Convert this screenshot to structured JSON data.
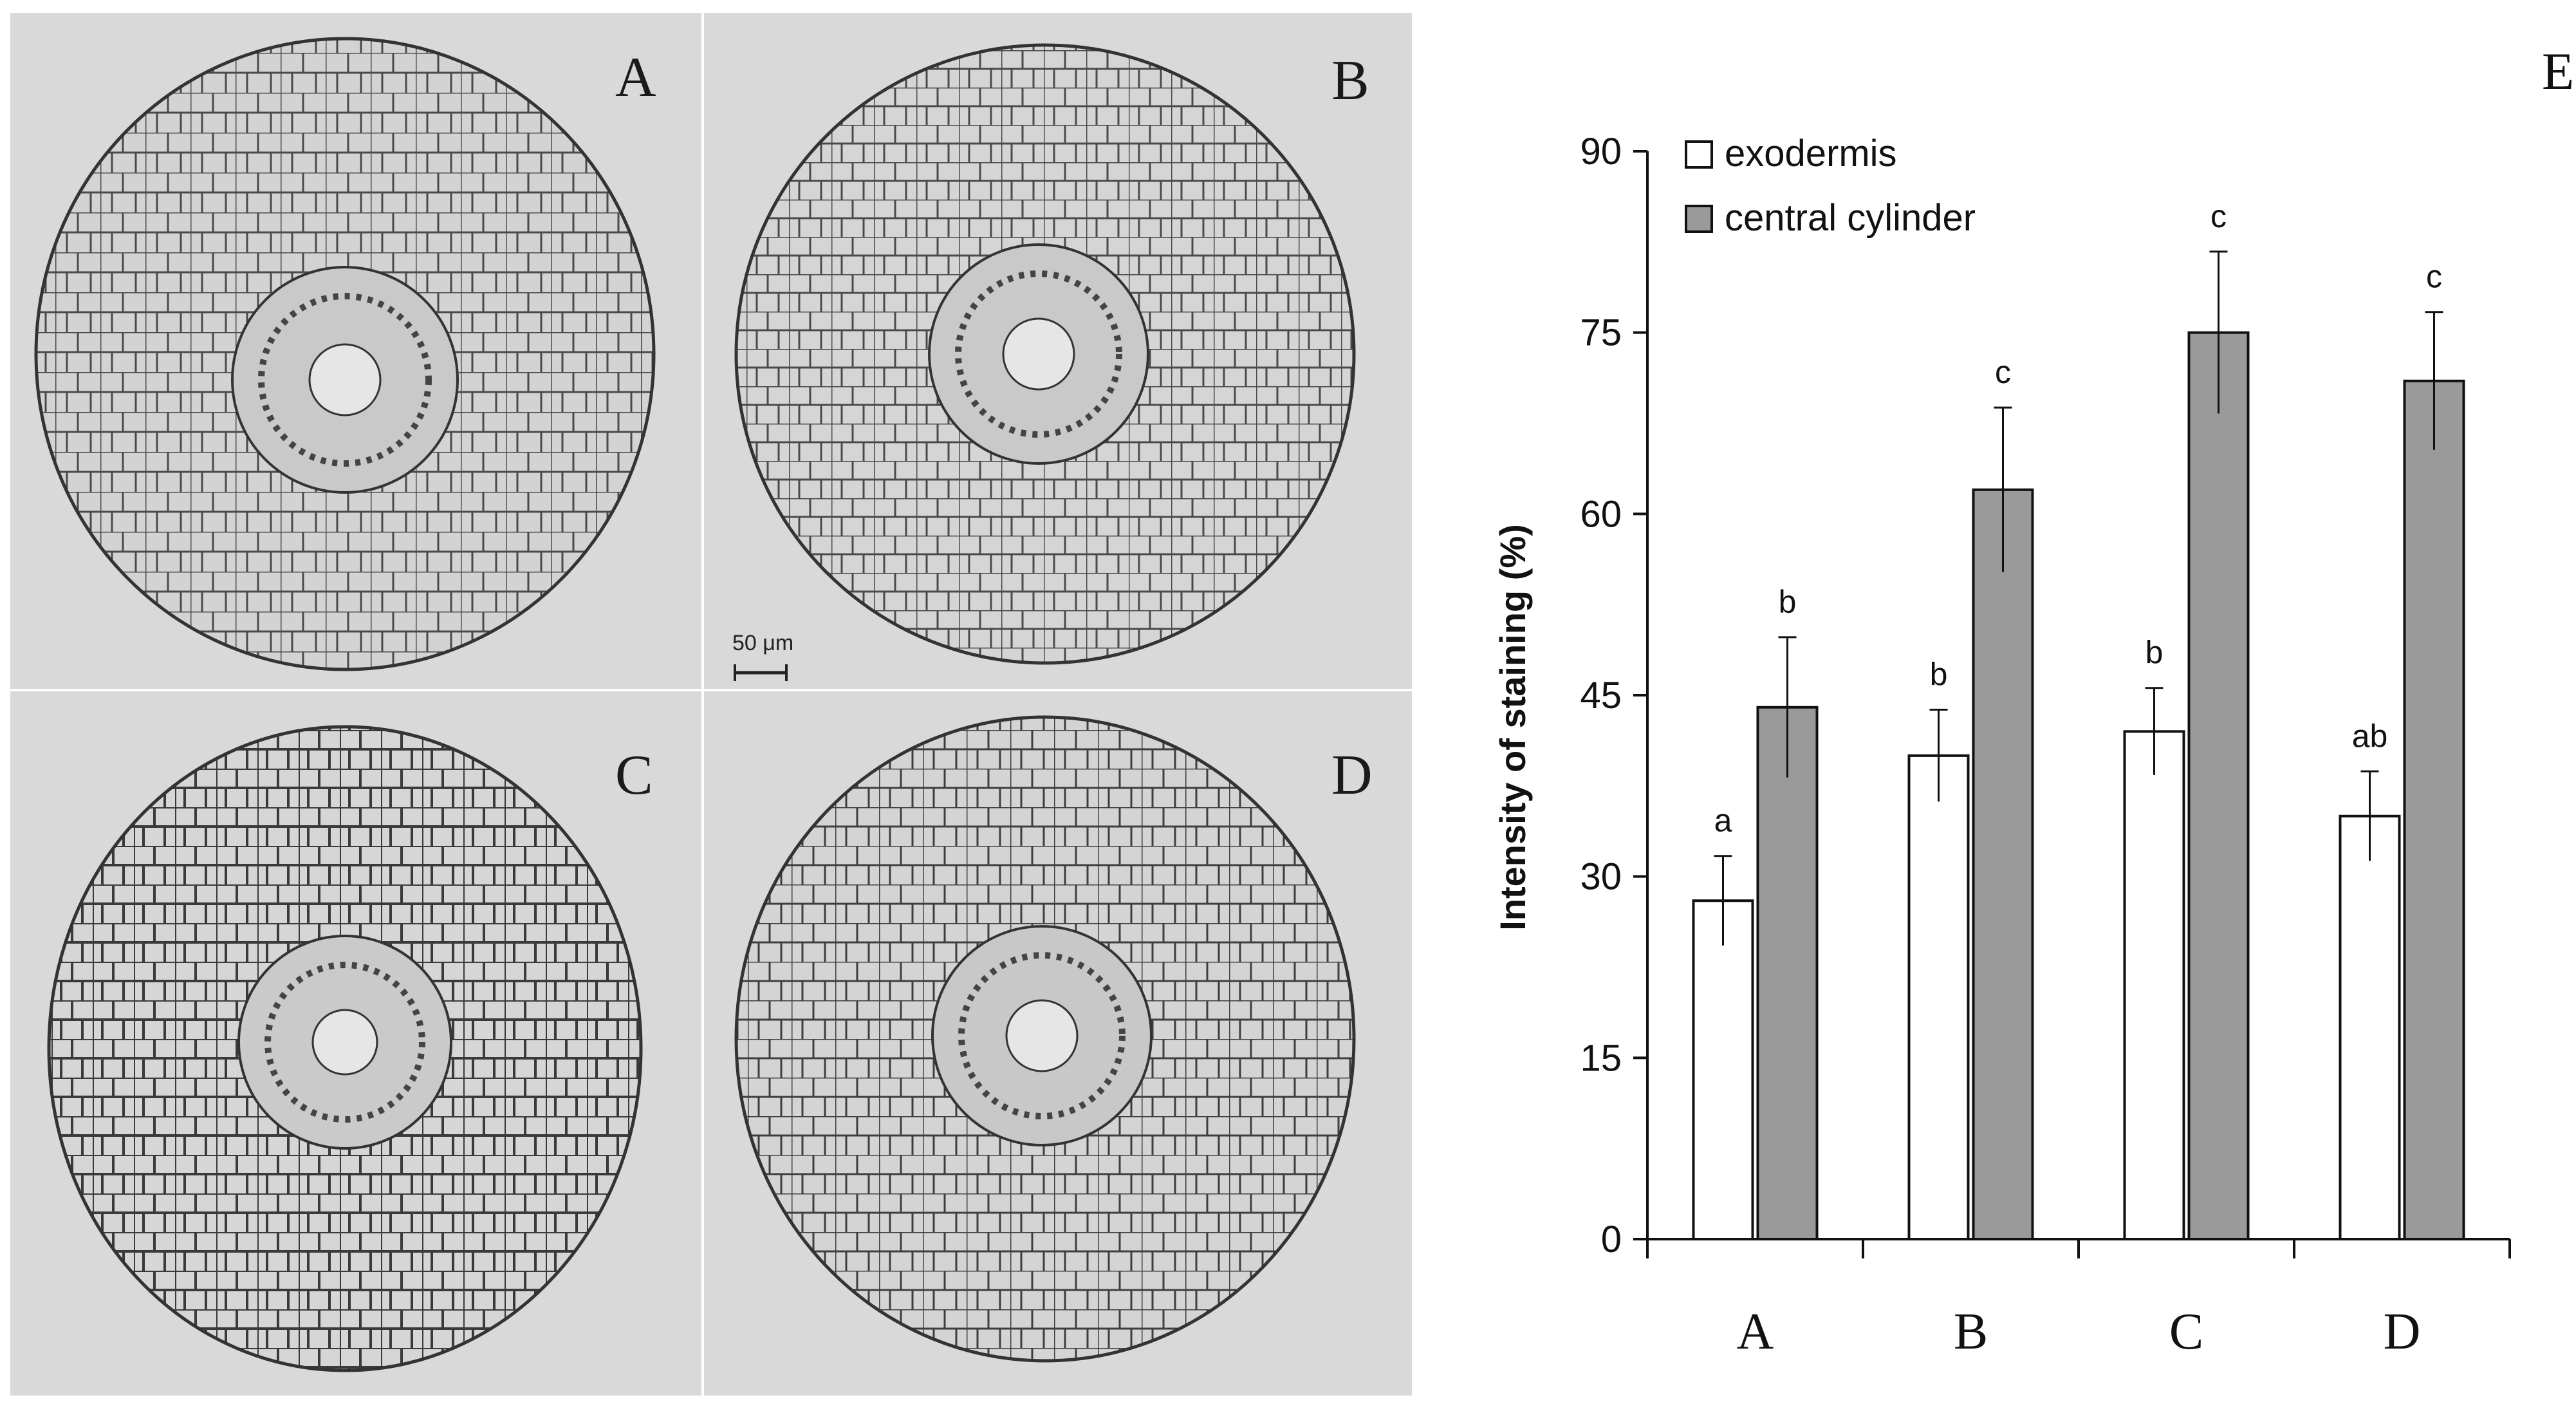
{
  "micrographs": {
    "panels": [
      {
        "id": "A",
        "letter": "A"
      },
      {
        "id": "B",
        "letter": "B"
      },
      {
        "id": "C",
        "letter": "C"
      },
      {
        "id": "D",
        "letter": "D"
      }
    ],
    "scale_bar_label": "50 μm"
  },
  "chart_panel_letter": "E",
  "chart_data": {
    "type": "bar",
    "title": "",
    "xlabel": "",
    "ylabel": "Intensity of staining (%)",
    "categories": [
      "A",
      "B",
      "C",
      "D"
    ],
    "ylim": [
      0,
      90
    ],
    "yticks": [
      0,
      15,
      30,
      45,
      60,
      75,
      90
    ],
    "legend_position": "top-left",
    "grid": false,
    "series": [
      {
        "name": "exodermis",
        "color": "#ffffff",
        "values": [
          28,
          40,
          42,
          35
        ],
        "errors": [
          3.7,
          3.8,
          3.6,
          3.7
        ],
        "labels": [
          "a",
          "b",
          "b",
          "ab"
        ]
      },
      {
        "name": "central cylinder",
        "color": "#9a9a9a",
        "values": [
          44,
          62,
          75,
          71
        ],
        "errors": [
          5.8,
          6.8,
          6.7,
          5.7
        ],
        "labels": [
          "b",
          "c",
          "c",
          "c"
        ]
      }
    ]
  }
}
